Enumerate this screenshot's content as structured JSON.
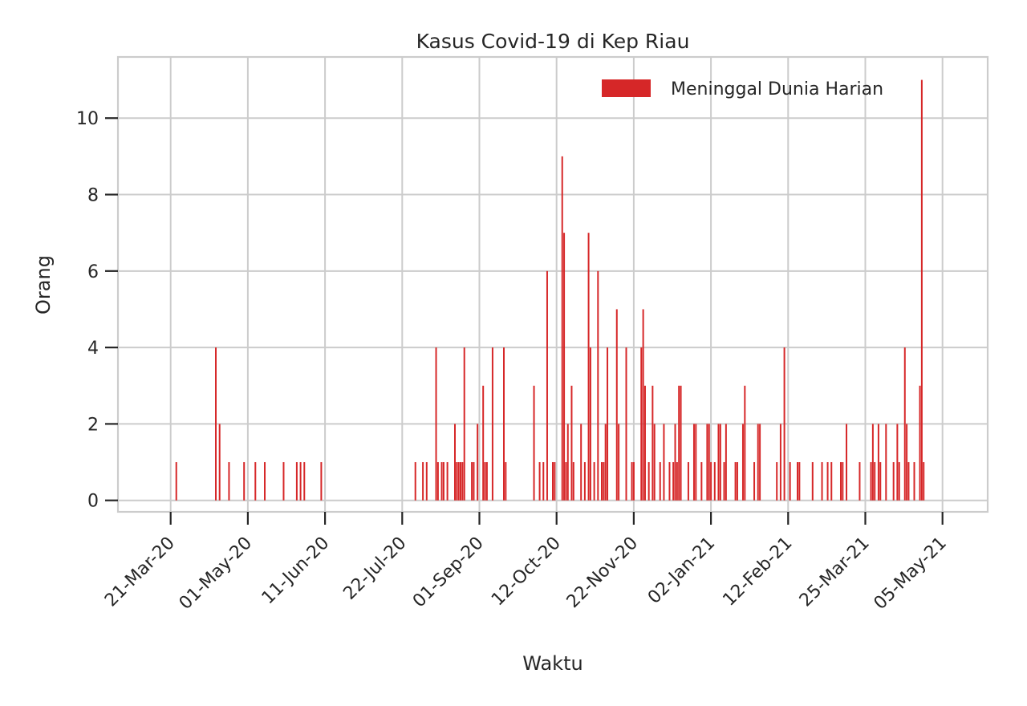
{
  "chart_data": {
    "type": "bar",
    "title": "Kasus Covid-19 di Kep Riau",
    "xlabel": "Waktu",
    "ylabel": "Orang",
    "ylim": [
      -0.3,
      11.6
    ],
    "y_ticks": [
      0,
      2,
      4,
      6,
      8,
      10
    ],
    "x_ticks": [
      "2020-03-21",
      "2020-05-01",
      "2020-06-11",
      "2020-07-22",
      "2020-09-01",
      "2020-10-12",
      "2020-11-22",
      "2021-01-02",
      "2021-02-12",
      "2021-03-25",
      "2021-05-05"
    ],
    "x_tick_labels": [
      "21-Mar-20",
      "01-May-20",
      "11-Jun-20",
      "22-Jul-20",
      "01-Sep-20",
      "12-Oct-20",
      "22-Nov-20",
      "02-Jan-21",
      "12-Feb-21",
      "25-Mar-21",
      "05-May-21"
    ],
    "xlim": [
      "2020-02-22",
      "2021-05-29"
    ],
    "grid": true,
    "legend_position": "top-right",
    "bar_color": "#d62728",
    "series": [
      {
        "name": "Meninggal Dunia Harian",
        "points": [
          [
            "2020-03-24",
            1
          ],
          [
            "2020-04-14",
            4
          ],
          [
            "2020-04-16",
            2
          ],
          [
            "2020-04-21",
            1
          ],
          [
            "2020-04-29",
            1
          ],
          [
            "2020-05-05",
            1
          ],
          [
            "2020-05-10",
            1
          ],
          [
            "2020-05-20",
            1
          ],
          [
            "2020-05-27",
            1
          ],
          [
            "2020-05-29",
            1
          ],
          [
            "2020-05-31",
            1
          ],
          [
            "2020-06-09",
            1
          ],
          [
            "2020-07-29",
            1
          ],
          [
            "2020-08-02",
            1
          ],
          [
            "2020-08-04",
            1
          ],
          [
            "2020-08-09",
            4
          ],
          [
            "2020-08-10",
            1
          ],
          [
            "2020-08-12",
            1
          ],
          [
            "2020-08-13",
            1
          ],
          [
            "2020-08-15",
            1
          ],
          [
            "2020-08-19",
            2
          ],
          [
            "2020-08-20",
            1
          ],
          [
            "2020-08-21",
            1
          ],
          [
            "2020-08-22",
            1
          ],
          [
            "2020-08-23",
            1
          ],
          [
            "2020-08-24",
            4
          ],
          [
            "2020-08-28",
            1
          ],
          [
            "2020-08-29",
            1
          ],
          [
            "2020-08-31",
            2
          ],
          [
            "2020-09-03",
            3
          ],
          [
            "2020-09-04",
            1
          ],
          [
            "2020-09-05",
            1
          ],
          [
            "2020-09-08",
            4
          ],
          [
            "2020-09-14",
            4
          ],
          [
            "2020-09-15",
            1
          ],
          [
            "2020-09-30",
            3
          ],
          [
            "2020-10-03",
            1
          ],
          [
            "2020-10-05",
            1
          ],
          [
            "2020-10-07",
            6
          ],
          [
            "2020-10-10",
            1
          ],
          [
            "2020-10-11",
            1
          ],
          [
            "2020-10-15",
            9
          ],
          [
            "2020-10-16",
            7
          ],
          [
            "2020-10-17",
            1
          ],
          [
            "2020-10-18",
            2
          ],
          [
            "2020-10-20",
            3
          ],
          [
            "2020-10-21",
            1
          ],
          [
            "2020-10-25",
            2
          ],
          [
            "2020-10-27",
            1
          ],
          [
            "2020-10-29",
            7
          ],
          [
            "2020-10-30",
            4
          ],
          [
            "2020-11-01",
            1
          ],
          [
            "2020-11-03",
            6
          ],
          [
            "2020-11-05",
            1
          ],
          [
            "2020-11-06",
            1
          ],
          [
            "2020-11-07",
            2
          ],
          [
            "2020-11-08",
            4
          ],
          [
            "2020-11-13",
            5
          ],
          [
            "2020-11-14",
            2
          ],
          [
            "2020-11-18",
            4
          ],
          [
            "2020-11-21",
            1
          ],
          [
            "2020-11-22",
            1
          ],
          [
            "2020-11-26",
            4
          ],
          [
            "2020-11-27",
            5
          ],
          [
            "2020-11-28",
            3
          ],
          [
            "2020-11-30",
            1
          ],
          [
            "2020-12-02",
            3
          ],
          [
            "2020-12-03",
            2
          ],
          [
            "2020-12-06",
            1
          ],
          [
            "2020-12-08",
            2
          ],
          [
            "2020-12-11",
            1
          ],
          [
            "2020-12-13",
            1
          ],
          [
            "2020-12-14",
            2
          ],
          [
            "2020-12-15",
            1
          ],
          [
            "2020-12-16",
            3
          ],
          [
            "2020-12-17",
            3
          ],
          [
            "2020-12-21",
            1
          ],
          [
            "2020-12-24",
            2
          ],
          [
            "2020-12-25",
            2
          ],
          [
            "2020-12-28",
            1
          ],
          [
            "2020-12-31",
            2
          ],
          [
            "2021-01-01",
            2
          ],
          [
            "2021-01-02",
            1
          ],
          [
            "2021-01-04",
            1
          ],
          [
            "2021-01-06",
            2
          ],
          [
            "2021-01-07",
            2
          ],
          [
            "2021-01-09",
            1
          ],
          [
            "2021-01-10",
            2
          ],
          [
            "2021-01-15",
            1
          ],
          [
            "2021-01-16",
            1
          ],
          [
            "2021-01-19",
            2
          ],
          [
            "2021-01-20",
            3
          ],
          [
            "2021-01-25",
            1
          ],
          [
            "2021-01-27",
            2
          ],
          [
            "2021-01-28",
            2
          ],
          [
            "2021-02-06",
            1
          ],
          [
            "2021-02-08",
            2
          ],
          [
            "2021-02-10",
            4
          ],
          [
            "2021-02-13",
            1
          ],
          [
            "2021-02-17",
            1
          ],
          [
            "2021-02-18",
            1
          ],
          [
            "2021-02-25",
            1
          ],
          [
            "2021-03-02",
            1
          ],
          [
            "2021-03-05",
            1
          ],
          [
            "2021-03-07",
            1
          ],
          [
            "2021-03-12",
            1
          ],
          [
            "2021-03-13",
            1
          ],
          [
            "2021-03-15",
            2
          ],
          [
            "2021-03-22",
            1
          ],
          [
            "2021-03-28",
            1
          ],
          [
            "2021-03-29",
            2
          ],
          [
            "2021-03-30",
            1
          ],
          [
            "2021-04-01",
            2
          ],
          [
            "2021-04-02",
            1
          ],
          [
            "2021-04-05",
            2
          ],
          [
            "2021-04-09",
            1
          ],
          [
            "2021-04-11",
            2
          ],
          [
            "2021-04-12",
            1
          ],
          [
            "2021-04-15",
            4
          ],
          [
            "2021-04-16",
            2
          ],
          [
            "2021-04-17",
            1
          ],
          [
            "2021-04-20",
            1
          ],
          [
            "2021-04-23",
            3
          ],
          [
            "2021-04-24",
            11
          ],
          [
            "2021-04-25",
            1
          ]
        ]
      }
    ]
  }
}
